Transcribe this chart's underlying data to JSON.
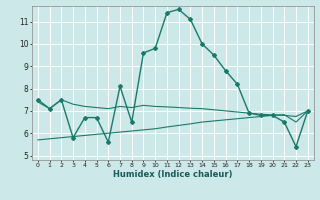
{
  "xlabel": "Humidex (Indice chaleur)",
  "background_color": "#cce8e8",
  "grid_color": "#ffffff",
  "line_color": "#1a7a6a",
  "xlim": [
    -0.5,
    23.5
  ],
  "ylim": [
    4.8,
    11.7
  ],
  "yticks": [
    5,
    6,
    7,
    8,
    9,
    10,
    11
  ],
  "xticks": [
    0,
    1,
    2,
    3,
    4,
    5,
    6,
    7,
    8,
    9,
    10,
    11,
    12,
    13,
    14,
    15,
    16,
    17,
    18,
    19,
    20,
    21,
    22,
    23
  ],
  "series1_x": [
    0,
    1,
    2,
    3,
    4,
    5,
    6,
    7,
    8,
    9,
    10,
    11,
    12,
    13,
    14,
    15,
    16,
    17,
    18,
    19,
    20,
    21,
    22,
    23
  ],
  "series1_y": [
    7.5,
    7.1,
    7.5,
    5.8,
    6.7,
    6.7,
    5.6,
    8.1,
    6.5,
    9.6,
    9.8,
    11.4,
    11.55,
    11.1,
    10.0,
    9.5,
    8.8,
    8.2,
    6.9,
    6.8,
    6.8,
    6.5,
    5.4,
    7.0
  ],
  "series2_x": [
    0,
    1,
    2,
    3,
    4,
    5,
    6,
    7,
    8,
    9,
    10,
    11,
    12,
    13,
    14,
    15,
    16,
    17,
    18,
    19,
    20,
    21,
    22,
    23
  ],
  "series2_y": [
    7.4,
    7.1,
    7.5,
    7.3,
    7.2,
    7.15,
    7.1,
    7.2,
    7.15,
    7.25,
    7.2,
    7.18,
    7.15,
    7.12,
    7.1,
    7.05,
    7.0,
    6.95,
    6.9,
    6.85,
    6.82,
    6.8,
    6.75,
    7.0
  ],
  "series3_x": [
    0,
    1,
    2,
    3,
    4,
    5,
    6,
    7,
    8,
    9,
    10,
    11,
    12,
    13,
    14,
    15,
    16,
    17,
    18,
    19,
    20,
    21,
    22,
    23
  ],
  "series3_y": [
    5.7,
    5.75,
    5.8,
    5.85,
    5.9,
    5.95,
    6.0,
    6.05,
    6.1,
    6.15,
    6.2,
    6.28,
    6.35,
    6.42,
    6.5,
    6.55,
    6.6,
    6.65,
    6.7,
    6.75,
    6.8,
    6.83,
    6.5,
    7.0
  ]
}
